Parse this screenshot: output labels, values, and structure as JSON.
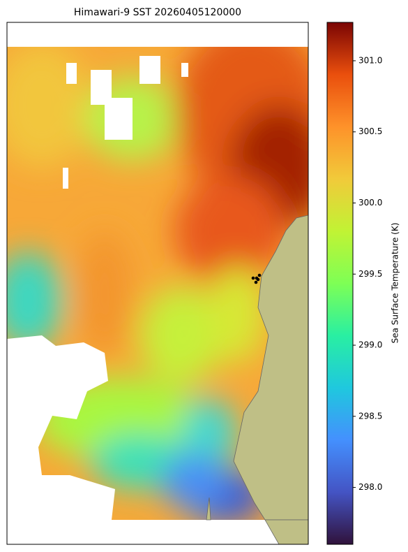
{
  "chart_data": {
    "type": "heatmap",
    "title": "Himawari-9 SST 20260405120000",
    "colorbar_label": "Sea Surface Temperature (K)",
    "clim": [
      297.6,
      301.27
    ],
    "cticks": [
      {
        "value": 298,
        "label": "298.0"
      },
      298.5,
      {
        "value": 299,
        "label": "299.0"
      },
      299.5,
      {
        "value": 300,
        "label": "300.0"
      },
      300.5,
      {
        "value": 301,
        "label": "301.0"
      }
    ]
  }
}
